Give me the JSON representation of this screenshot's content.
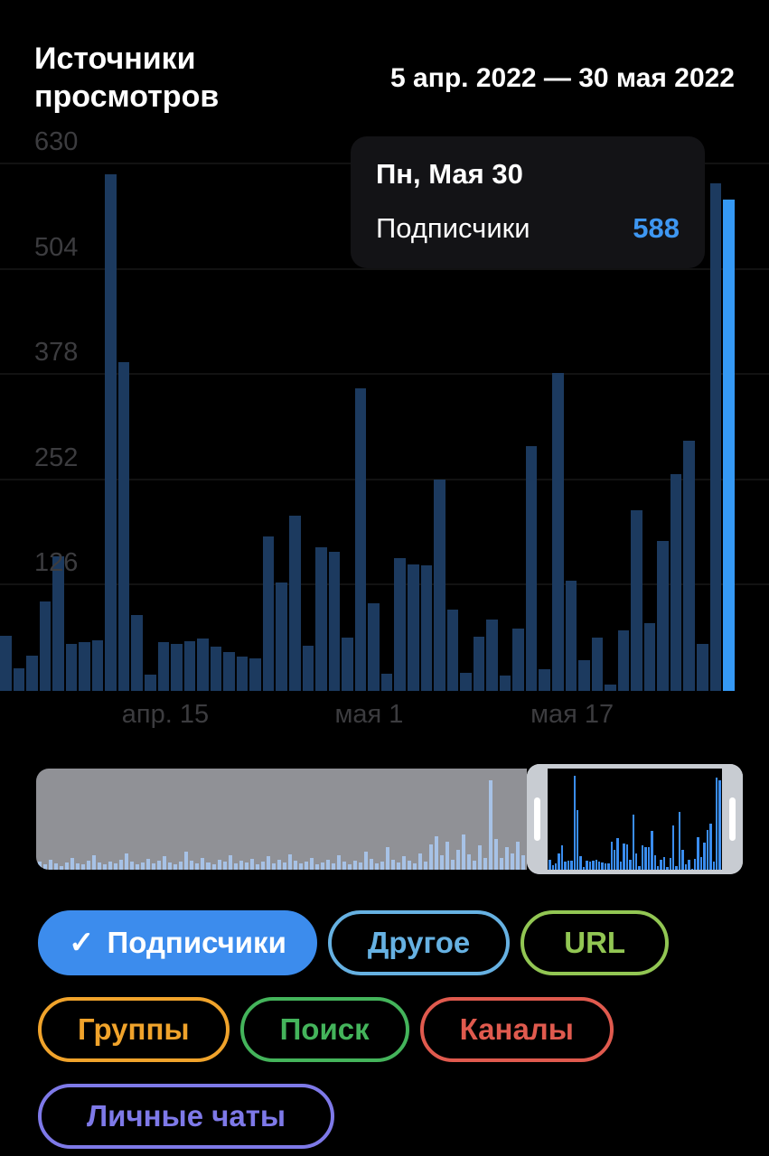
{
  "header": {
    "title": "Источники\nпросмотров",
    "date_range": "5 апр. 2022 — 30 мая 2022"
  },
  "tooltip": {
    "title": "Пн, Мая 30",
    "row": {
      "label": "Подписчики",
      "value": "588"
    },
    "value_color": "#3e97f2",
    "background": "#131316"
  },
  "chart_data": {
    "type": "bar",
    "title": "Источники просмотров",
    "series": [
      {
        "name": "Подписчики",
        "values": [
          66,
          27,
          42,
          107,
          161,
          56,
          58,
          61,
          618,
          394,
          91,
          20,
          58,
          56,
          60,
          63,
          53,
          47,
          41,
          39,
          185,
          130,
          210,
          54,
          172,
          166,
          64,
          362,
          105,
          21,
          159,
          151,
          150,
          253,
          97,
          22,
          65,
          85,
          18,
          75,
          293,
          26,
          381,
          132,
          37,
          64,
          8,
          72,
          216,
          81,
          180,
          259,
          300,
          56,
          608,
          588
        ]
      }
    ],
    "x_start": "5 апр. 2022",
    "x_end": "30 мая 2022",
    "x_ticks": [
      {
        "label": "апр. 15",
        "pos_pct": 21.5
      },
      {
        "label": "мая 1",
        "pos_pct": 48.0
      },
      {
        "label": "мая 17",
        "pos_pct": 74.4
      }
    ],
    "y_ticks": [
      126,
      252,
      378,
      504,
      630
    ],
    "ylim": [
      0,
      665
    ],
    "grid": "on",
    "legend_position": "none",
    "selected_index": 55,
    "selected_value": 588,
    "bar_color": "#1c3a5f",
    "selected_bar_color": "#3599f5"
  },
  "minimap": {
    "history_pct": [
      8,
      5,
      10,
      6,
      4,
      7,
      12,
      6,
      5,
      9,
      14,
      7,
      5,
      8,
      6,
      10,
      16,
      8,
      5,
      7,
      11,
      6,
      9,
      13,
      7,
      5,
      8,
      18,
      9,
      6,
      12,
      7,
      5,
      10,
      8,
      14,
      6,
      9,
      7,
      11,
      5,
      8,
      13,
      6,
      10,
      7,
      15,
      9,
      6,
      8,
      12,
      5,
      7,
      10,
      6,
      14,
      8,
      5,
      9,
      7,
      18,
      11,
      6,
      8,
      22,
      10,
      7,
      13,
      9,
      6,
      16,
      8,
      25,
      33,
      14,
      28,
      10,
      20,
      35,
      15,
      9,
      24,
      12,
      88,
      30,
      12,
      22,
      16,
      28,
      14
    ],
    "selection_start_pct": 70,
    "overlay_color": "#909196",
    "history_bar_color": "#a7c2e6",
    "selection_bar_color": "#3a8def",
    "frame_color": "#c8ccd2"
  },
  "filters": {
    "chips": [
      {
        "key": "subscribers",
        "label": "Подписчики",
        "color": "#3c8ced",
        "filled": true,
        "checked": true
      },
      {
        "key": "other",
        "label": "Другое",
        "color": "#66b1e2",
        "filled": false,
        "checked": false
      },
      {
        "key": "url",
        "label": "URL",
        "color": "#92c653",
        "filled": false,
        "checked": false
      },
      {
        "key": "groups",
        "label": "Группы",
        "color": "#f0a32b",
        "filled": false,
        "checked": false
      },
      {
        "key": "search",
        "label": "Поиск",
        "color": "#44b45b",
        "filled": false,
        "checked": false
      },
      {
        "key": "channels",
        "label": "Каналы",
        "color": "#e05a4e",
        "filled": false,
        "checked": false
      },
      {
        "key": "private-chats",
        "label": "Личные чаты",
        "color": "#7e79e8",
        "filled": false,
        "checked": false
      }
    ],
    "check_glyph": "✓"
  }
}
